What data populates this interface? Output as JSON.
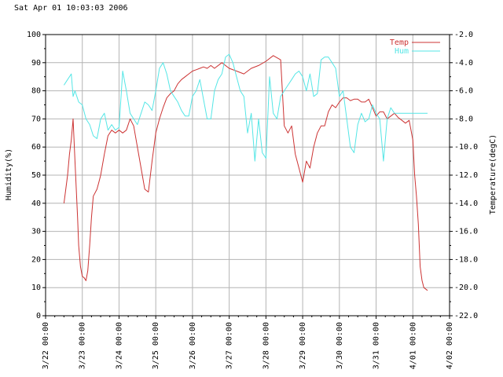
{
  "chart_data": {
    "type": "line",
    "timestamp": "Sat Apr 01 10:03:03 2006",
    "ylabel_left": "Humidity(%)",
    "ylabel_right": "Temperature(degC)",
    "ylim_left": [
      0,
      100
    ],
    "ylim_right": [
      -22.0,
      -2.0
    ],
    "yticks_left": [
      "0",
      "10",
      "20",
      "30",
      "40",
      "50",
      "60",
      "70",
      "80",
      "90",
      "100"
    ],
    "yticks_right": [
      "-22.0",
      "-20.0",
      "-18.0",
      "-16.0",
      "-14.0",
      "-12.0",
      "-10.0",
      "-8.0",
      "-6.0",
      "-4.0",
      "-2.0"
    ],
    "xticks": [
      "3/22 00:00",
      "3/23 00:00",
      "3/24 00:00",
      "3/25 00:00",
      "3/26 00:00",
      "3/27 00:00",
      "3/28 00:00",
      "3/29 00:00",
      "3/30 00:00",
      "3/31 00:00",
      "4/01 00:00",
      "4/02 00:00"
    ],
    "xlim_days": [
      0,
      11
    ],
    "grid": true,
    "legend": "top-right",
    "colors": {
      "Temp": "#cc3333",
      "Hum": "#55e6e6",
      "grid": "#b4b4b4",
      "axis": "#000000"
    },
    "series": [
      {
        "name": "Temp",
        "axis": "right",
        "x": [
          0.5,
          0.6,
          0.65,
          0.7,
          0.75,
          0.8,
          0.87,
          0.9,
          0.95,
          1.0,
          1.05,
          1.1,
          1.15,
          1.2,
          1.25,
          1.3,
          1.4,
          1.45,
          1.5,
          1.6,
          1.7,
          1.8,
          1.9,
          2.0,
          2.1,
          2.2,
          2.3,
          2.4,
          2.5,
          2.6,
          2.7,
          2.8,
          2.9,
          3.0,
          3.1,
          3.2,
          3.3,
          3.4,
          3.5,
          3.6,
          3.7,
          3.8,
          3.9,
          4.0,
          4.1,
          4.2,
          4.3,
          4.4,
          4.5,
          4.6,
          4.8,
          5.0,
          5.2,
          5.4,
          5.6,
          5.8,
          6.0,
          6.2,
          6.4,
          6.5,
          6.6,
          6.7,
          6.8,
          6.9,
          7.0,
          7.1,
          7.2,
          7.3,
          7.4,
          7.5,
          7.6,
          7.7,
          7.8,
          7.9,
          8.0,
          8.1,
          8.2,
          8.3,
          8.4,
          8.5,
          8.6,
          8.7,
          8.8,
          8.9,
          9.0,
          9.1,
          9.2,
          9.3,
          9.4,
          9.5,
          9.6,
          9.7,
          9.8,
          9.9,
          10.0,
          10.05,
          10.1,
          10.15,
          10.2,
          10.25,
          10.3,
          10.4
        ],
        "y": [
          -14.0,
          -12.0,
          -10.5,
          -9.5,
          -8.0,
          -11.0,
          -15.0,
          -17.0,
          -18.5,
          -19.2,
          -19.3,
          -19.5,
          -18.8,
          -17.0,
          -15.0,
          -13.5,
          -13.0,
          -12.5,
          -12.0,
          -10.5,
          -9.2,
          -8.8,
          -9.0,
          -8.8,
          -9.0,
          -8.8,
          -8.0,
          -8.5,
          -10.0,
          -11.5,
          -13.0,
          -13.2,
          -11.0,
          -9.0,
          -8.0,
          -7.2,
          -6.5,
          -6.2,
          -6.0,
          -5.5,
          -5.2,
          -5.0,
          -4.8,
          -4.6,
          -4.5,
          -4.4,
          -4.3,
          -4.4,
          -4.2,
          -4.4,
          -4.0,
          -4.4,
          -4.6,
          -4.8,
          -4.4,
          -4.2,
          -3.9,
          -3.5,
          -3.8,
          -8.5,
          -9.0,
          -8.5,
          -10.5,
          -11.5,
          -12.5,
          -11.0,
          -11.5,
          -10.0,
          -9.0,
          -8.5,
          -8.5,
          -7.5,
          -7.0,
          -7.2,
          -6.8,
          -6.5,
          -6.5,
          -6.7,
          -6.6,
          -6.6,
          -6.8,
          -6.8,
          -6.6,
          -7.2,
          -7.8,
          -7.5,
          -7.5,
          -8.0,
          -7.8,
          -7.6,
          -7.9,
          -8.1,
          -8.3,
          -8.1,
          -9.5,
          -12.0,
          -13.5,
          -15.5,
          -18.5,
          -19.5,
          -20.0,
          -20.2
        ],
        "line_x": [
          0.5,
          0.55,
          0.6,
          0.65,
          0.7,
          0.75,
          0.8,
          0.87,
          0.9,
          0.95,
          1.0,
          1.05,
          1.1,
          1.15,
          1.2,
          1.25,
          1.3,
          1.35,
          1.4,
          1.45,
          1.5,
          1.6,
          1.7,
          1.8,
          1.9,
          2.0,
          2.1,
          2.2,
          2.3,
          2.4,
          2.5,
          2.6,
          2.7,
          2.8,
          2.9,
          3.0,
          3.1,
          3.2,
          3.3,
          3.4,
          3.5,
          3.6,
          3.7,
          3.8,
          3.9,
          4.0,
          4.1,
          4.2,
          4.3,
          4.4,
          4.5,
          4.6,
          4.8,
          5.0,
          5.2,
          5.4,
          5.6,
          5.8,
          6.0,
          6.2,
          6.4,
          6.5,
          6.6,
          6.7,
          6.8,
          6.9,
          7.0,
          7.1,
          7.2,
          7.3,
          7.4,
          7.5,
          7.6,
          7.7,
          7.8,
          7.9,
          8.0,
          8.1,
          8.2,
          8.3,
          8.4,
          8.5,
          8.6,
          8.7,
          8.8,
          8.9,
          9.0,
          9.1,
          9.2,
          9.3,
          9.4,
          9.5,
          9.6,
          9.7,
          9.8,
          9.9,
          10.0,
          10.1,
          10.2,
          10.3,
          10.4
        ]
      },
      {
        "name": "Hum",
        "axis": "left",
        "x": [
          0.5,
          0.6,
          0.7,
          0.75,
          0.8,
          0.9,
          1.0,
          1.1,
          1.2,
          1.3,
          1.4,
          1.5,
          1.6,
          1.7,
          1.8,
          1.9,
          2.0,
          2.1,
          2.2,
          2.3,
          2.4,
          2.5,
          2.6,
          2.7,
          2.8,
          2.9,
          3.0,
          3.1,
          3.2,
          3.3,
          3.4,
          3.5,
          3.6,
          3.7,
          3.8,
          3.9,
          4.0,
          4.1,
          4.2,
          4.3,
          4.4,
          4.5,
          4.6,
          4.7,
          4.8,
          4.9,
          5.0,
          5.1,
          5.2,
          5.3,
          5.4,
          5.5,
          5.6,
          5.7,
          5.8,
          5.9,
          6.0,
          6.1,
          6.2,
          6.3,
          6.4,
          6.5,
          6.6,
          6.7,
          6.8,
          6.9,
          7.0,
          7.1,
          7.2,
          7.3,
          7.4,
          7.5,
          7.6,
          7.7,
          7.8,
          7.9,
          8.0,
          8.1,
          8.2,
          8.3,
          8.4,
          8.5,
          8.6,
          8.7,
          8.8,
          8.9,
          9.0,
          9.1,
          9.2,
          9.3,
          9.4,
          9.5,
          9.6,
          9.7,
          9.8,
          9.9,
          10.0,
          10.1,
          10.2,
          10.3,
          10.4
        ],
        "y": [
          82,
          84,
          86,
          78,
          80,
          76,
          75,
          70,
          68,
          64,
          63,
          70,
          72,
          66,
          68,
          66,
          67,
          87,
          80,
          72,
          70,
          68,
          72,
          76,
          75,
          73,
          80,
          88,
          90,
          86,
          80,
          78,
          76,
          73,
          71,
          71,
          78,
          80,
          84,
          77,
          70,
          70,
          80,
          84,
          86,
          92,
          93,
          90,
          85,
          80,
          78,
          65,
          72,
          55,
          70,
          58,
          56,
          85,
          72,
          70,
          78,
          80,
          82,
          84,
          86,
          87,
          85,
          80,
          86,
          78,
          79,
          91,
          92,
          92,
          90,
          88,
          78,
          80,
          70,
          60,
          58,
          68,
          72,
          69,
          70,
          75,
          72,
          70,
          55,
          70,
          74,
          72,
          72,
          72,
          72,
          72,
          72,
          72,
          72,
          72,
          72
        ]
      }
    ]
  }
}
